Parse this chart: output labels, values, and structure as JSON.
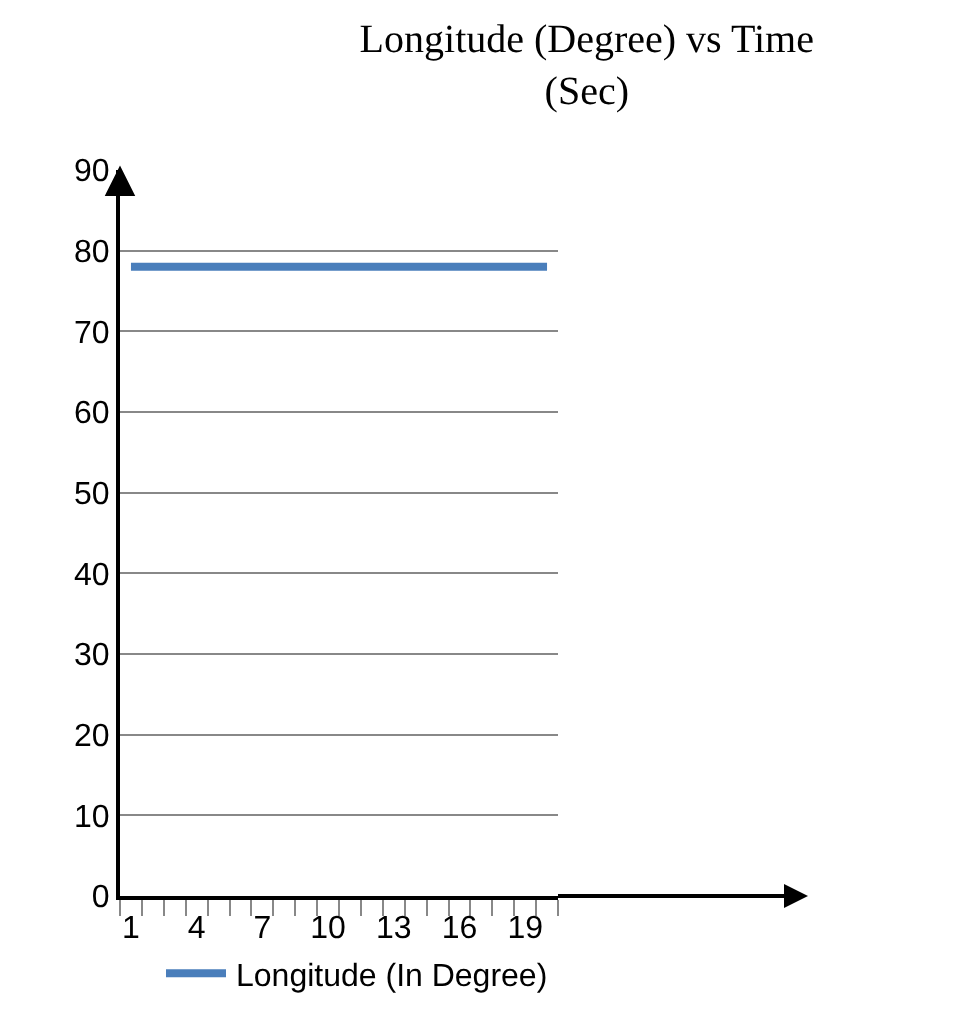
{
  "chart_data": {
    "type": "line",
    "title": "Longitude (Degree) vs Time (Sec)",
    "categories": [
      "1",
      null,
      null,
      "4",
      null,
      null,
      "7",
      null,
      null,
      "10",
      null,
      null,
      "13",
      null,
      null,
      "16",
      null,
      null,
      "19",
      null
    ],
    "series": [
      {
        "name": "Longitude (In Degree)",
        "color": "#4a7ebb",
        "values": [
          78,
          78,
          78,
          78,
          78,
          78,
          78,
          78,
          78,
          78,
          78,
          78,
          78,
          78,
          78,
          78,
          78,
          78,
          78,
          78
        ]
      }
    ],
    "ylim": [
      0,
      90
    ],
    "yticks": [
      0,
      10,
      20,
      30,
      40,
      50,
      60,
      70,
      80,
      90
    ],
    "grid": "y",
    "legend": "bottom",
    "marker": "none",
    "line_style": "solid"
  }
}
